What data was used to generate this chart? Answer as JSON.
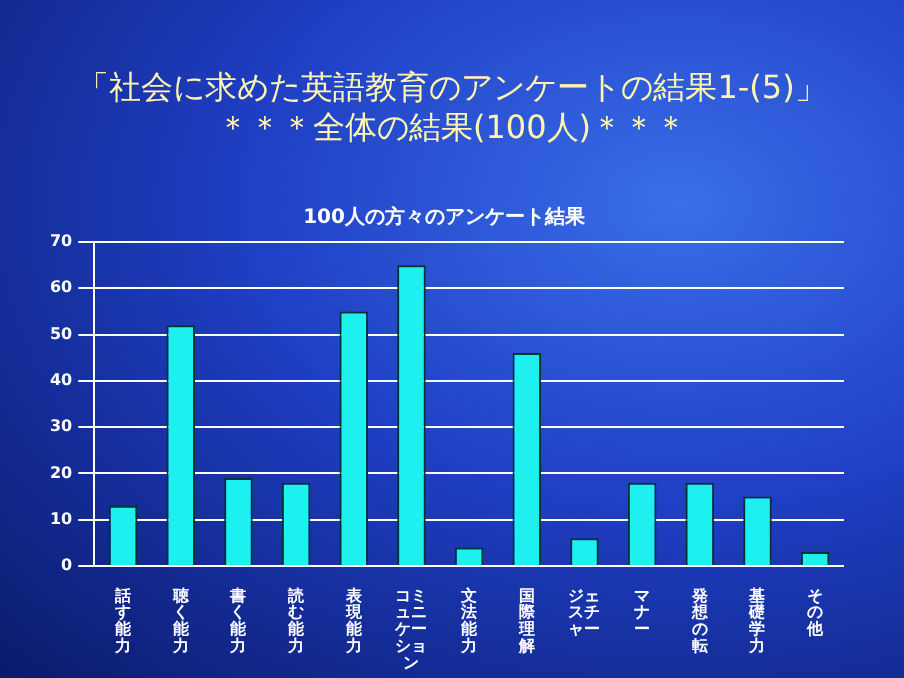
{
  "chart_data": {
    "type": "bar",
    "title": "「社会に求めた英語教育のアンケートの結果1-(5)」",
    "subtitle": "＊＊＊全体の結果(100人)＊＊＊",
    "annotations": [
      "100人の方々のアンケート結果"
    ],
    "categories": [
      "話す能力",
      "聴く能力",
      "書く能力",
      "読む能力",
      "表現能力",
      "コミュニケーション",
      "文法能力",
      "国際理解",
      "ジェスチャー",
      "マナー",
      "発想の転",
      "基礎学力",
      "その他"
    ],
    "values": [
      13,
      52,
      19,
      18,
      55,
      65,
      4,
      46,
      6,
      18,
      18,
      15,
      3
    ],
    "color": "#1ef0f0",
    "ylim": [
      0,
      70
    ],
    "yticks": [
      0,
      10,
      20,
      30,
      40,
      50,
      60,
      70
    ],
    "grid": "y",
    "legend": false
  }
}
